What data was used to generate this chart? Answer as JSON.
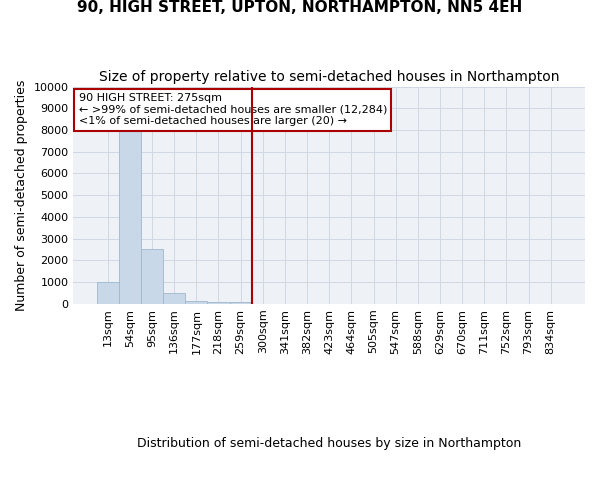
{
  "title": "90, HIGH STREET, UPTON, NORTHAMPTON, NN5 4EH",
  "subtitle": "Size of property relative to semi-detached houses in Northampton",
  "xlabel": "Distribution of semi-detached houses by size in Northampton",
  "ylabel": "Number of semi-detached properties",
  "categories": [
    "13sqm",
    "54sqm",
    "95sqm",
    "136sqm",
    "177sqm",
    "218sqm",
    "259sqm",
    "300sqm",
    "341sqm",
    "382sqm",
    "423sqm",
    "464sqm",
    "505sqm",
    "547sqm",
    "588sqm",
    "629sqm",
    "670sqm",
    "711sqm",
    "752sqm",
    "793sqm",
    "834sqm"
  ],
  "values": [
    1000,
    8000,
    2500,
    500,
    150,
    100,
    70,
    5,
    2,
    1,
    1,
    0,
    0,
    0,
    0,
    0,
    0,
    0,
    0,
    0,
    0
  ],
  "bar_color": "#c8d8e8",
  "bar_edge_color": "#a0b8cc",
  "vline_index": 7,
  "vline_color": "#aa0000",
  "annotation_line1": "90 HIGH STREET: 275sqm",
  "annotation_line2": "← >99% of semi-detached houses are smaller (12,284)",
  "annotation_line3": "<1% of semi-detached houses are larger (20) →",
  "annotation_box_color": "#aa0000",
  "annotation_fill": "white",
  "ylim": [
    0,
    10000
  ],
  "yticks": [
    0,
    1000,
    2000,
    3000,
    4000,
    5000,
    6000,
    7000,
    8000,
    9000,
    10000
  ],
  "grid_color": "#d0d8e4",
  "bg_color": "#eef2f7",
  "title_fontsize": 11,
  "subtitle_fontsize": 10,
  "ylabel_fontsize": 9,
  "tick_fontsize": 8,
  "footer_fontsize": 7,
  "xlabel_fontsize": 9
}
